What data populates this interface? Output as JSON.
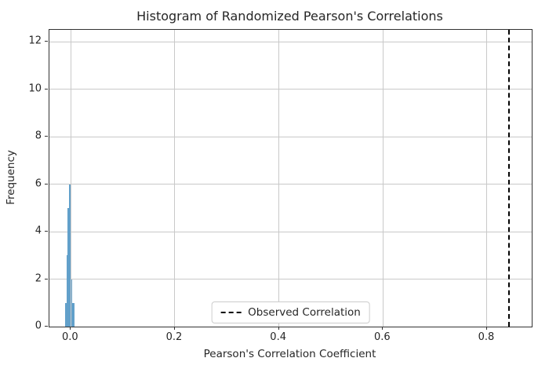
{
  "chart_data": {
    "type": "bar",
    "subtype": "histogram",
    "title": "Histogram of Randomized Pearson's Correlations",
    "xlabel": "Pearson's Correlation Coefficient",
    "ylabel": "Frequency",
    "xlim": [
      -0.0412,
      0.886
    ],
    "ylim": [
      0,
      12.5
    ],
    "grid": true,
    "legend_label": "Observed Correlation",
    "legend_position": "lower center",
    "x_ticks": [
      {
        "value": 0.0,
        "label": "0.0"
      },
      {
        "value": 0.2,
        "label": "0.2"
      },
      {
        "value": 0.4,
        "label": "0.4"
      },
      {
        "value": 0.6,
        "label": "0.6"
      },
      {
        "value": 0.8,
        "label": "0.8"
      }
    ],
    "y_ticks": [
      {
        "value": 0,
        "label": "0"
      },
      {
        "value": 2,
        "label": "2"
      },
      {
        "value": 4,
        "label": "4"
      },
      {
        "value": 6,
        "label": "6"
      },
      {
        "value": 8,
        "label": "8"
      },
      {
        "value": 10,
        "label": "10"
      },
      {
        "value": 12,
        "label": "12"
      }
    ],
    "bins": [
      {
        "x0": -0.011,
        "x1": -0.0087,
        "count": 1
      },
      {
        "x0": -0.0087,
        "x1": -0.0065,
        "count": 3
      },
      {
        "x0": -0.0065,
        "x1": -0.0035,
        "count": 5
      },
      {
        "x0": -0.0035,
        "x1": -0.0005,
        "count": 6
      },
      {
        "x0": 0.0011,
        "x1": 0.0026,
        "count": 2
      },
      {
        "x0": 0.0026,
        "x1": 0.0056,
        "count": 1
      },
      {
        "x0": 0.0056,
        "x1": 0.0071,
        "count": 1
      }
    ],
    "observed_correlation": 0.843,
    "colors": {
      "bars": "#62a0ca",
      "grid": "#c9c9c9",
      "observed_line": "#000000",
      "spines": "#333333",
      "text": "#262626"
    }
  }
}
